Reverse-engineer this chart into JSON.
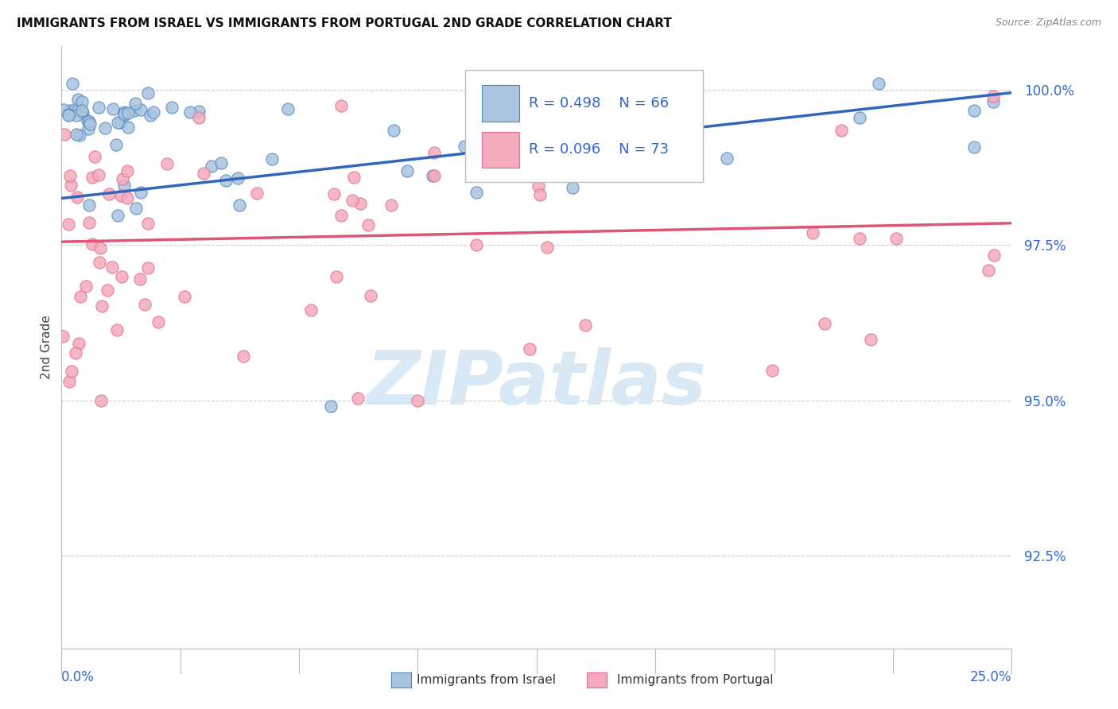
{
  "title": "IMMIGRANTS FROM ISRAEL VS IMMIGRANTS FROM PORTUGAL 2ND GRADE CORRELATION CHART",
  "source": "Source: ZipAtlas.com",
  "ylabel": "2nd Grade",
  "ytick_labels": [
    "100.0%",
    "97.5%",
    "95.0%",
    "92.5%"
  ],
  "ytick_values": [
    1.0,
    0.975,
    0.95,
    0.925
  ],
  "xlim": [
    0.0,
    0.25
  ],
  "ylim": [
    0.91,
    1.007
  ],
  "blue_R": 0.498,
  "blue_N": 66,
  "pink_R": 0.096,
  "pink_N": 73,
  "blue_color": "#A8C4E0",
  "pink_color": "#F4AABC",
  "blue_edge_color": "#5588BB",
  "pink_edge_color": "#E07090",
  "blue_line_color": "#3366BB",
  "pink_line_color": "#DD5577",
  "watermark_text": "ZIPatlas",
  "watermark_color": "#D8E8F5",
  "blue_trend_x": [
    0.0,
    0.25
  ],
  "blue_trend_y": [
    0.9825,
    0.9995
  ],
  "pink_trend_x": [
    0.0,
    0.25
  ],
  "pink_trend_y": [
    0.9755,
    0.9785
  ],
  "seed": 123
}
